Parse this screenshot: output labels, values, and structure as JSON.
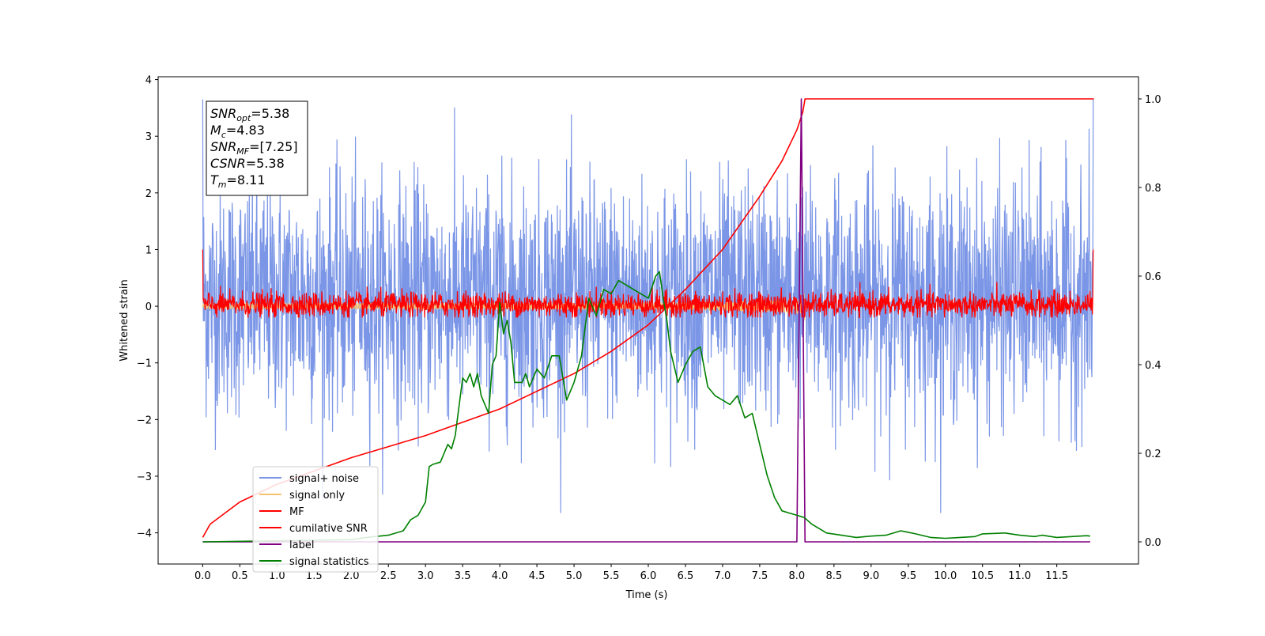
{
  "chart_data": {
    "type": "line",
    "xlabel": "Time (s)",
    "ylabel": "Whitened strain",
    "xlim": [
      -0.6,
      12.6
    ],
    "ylim": [
      -4.55,
      4.05
    ],
    "y2lim": [
      -0.05,
      1.05
    ],
    "x_ticks": [
      "0.0",
      "0.5",
      "1.0",
      "1.5",
      "2.0",
      "2.5",
      "3.0",
      "3.5",
      "4.0",
      "4.5",
      "5.0",
      "5.5",
      "6.0",
      "6.5",
      "7.0",
      "7.5",
      "8.0",
      "8.5",
      "9.0",
      "9.5",
      "10.0",
      "10.5",
      "11.0",
      "11.5"
    ],
    "y_ticks": [
      "4",
      "3",
      "2",
      "1",
      "0",
      "−1",
      "−2",
      "−3",
      "−4"
    ],
    "y2_ticks": [
      "1.0",
      "0.8",
      "0.6",
      "0.4",
      "0.2",
      "0.0"
    ],
    "annotation": {
      "snr_opt": {
        "sym": "SNR",
        "sub": "opt",
        "val": "=5.38"
      },
      "mc": {
        "sym": "M",
        "sub": "c",
        "val": "=4.83"
      },
      "snr_mf": {
        "sym": "SNR",
        "sub": "MF",
        "val": "=[7.25]"
      },
      "csnr": {
        "sym": "CSNR",
        "sub": "",
        "val": "=5.38"
      },
      "tm": {
        "sym": "T",
        "sub": "m",
        "val": "=8.11"
      }
    },
    "series": [
      {
        "name": "signal+ noise",
        "color": "#7b96e6",
        "axis": "left",
        "kind": "noise",
        "x_range": [
          0,
          11.99
        ],
        "typical_range": [
          -1.9,
          2.2
        ],
        "extremes": [
          -3.65,
          3.65
        ]
      },
      {
        "name": "signal only",
        "color": "#f5c270",
        "axis": "left",
        "kind": "chirp",
        "x_range": [
          0,
          8.11
        ],
        "amplitude_at_merger": 0.3
      },
      {
        "name": "MF",
        "color": "#ff0000",
        "axis": "left",
        "kind": "noise",
        "x_range": [
          0,
          11.99
        ],
        "typical_range": [
          -0.2,
          0.25
        ],
        "extremes": [
          -0.2,
          1.0
        ]
      },
      {
        "name": "cumilative SNR",
        "color": "#ff0000",
        "axis": "right",
        "x": [
          0,
          0.1,
          0.5,
          1.0,
          2.0,
          3.0,
          4.0,
          5.0,
          5.5,
          6.0,
          6.5,
          7.0,
          7.5,
          7.8,
          8.0,
          8.08,
          8.11,
          8.15,
          12.0
        ],
        "y": [
          0.01,
          0.04,
          0.09,
          0.13,
          0.19,
          0.24,
          0.3,
          0.38,
          0.43,
          0.49,
          0.57,
          0.66,
          0.78,
          0.86,
          0.93,
          0.97,
          1.0,
          1.0,
          1.0
        ]
      },
      {
        "name": "label",
        "color": "#800080",
        "axis": "right",
        "x": [
          0,
          7.99,
          8.0,
          8.06,
          8.11,
          8.12,
          11.95
        ],
        "y": [
          0,
          0,
          0,
          1.0,
          0,
          0,
          0
        ]
      },
      {
        "name": "signal statistics",
        "color": "#008000",
        "axis": "right",
        "x": [
          0,
          2.0,
          2.2,
          2.5,
          2.7,
          2.8,
          2.9,
          3.0,
          3.05,
          3.1,
          3.2,
          3.3,
          3.35,
          3.4,
          3.5,
          3.55,
          3.6,
          3.65,
          3.7,
          3.75,
          3.85,
          3.9,
          3.95,
          4.0,
          4.05,
          4.1,
          4.15,
          4.2,
          4.3,
          4.35,
          4.4,
          4.5,
          4.6,
          4.7,
          4.8,
          4.9,
          5.0,
          5.1,
          5.2,
          5.3,
          5.4,
          5.5,
          5.6,
          5.7,
          5.8,
          5.9,
          6.0,
          6.1,
          6.15,
          6.2,
          6.25,
          6.3,
          6.4,
          6.5,
          6.6,
          6.7,
          6.8,
          6.9,
          7.0,
          7.1,
          7.2,
          7.3,
          7.4,
          7.5,
          7.6,
          7.7,
          7.8,
          7.9,
          8.0,
          8.1,
          8.2,
          8.3,
          8.4,
          8.6,
          8.8,
          9.0,
          9.2,
          9.4,
          9.6,
          9.8,
          10.0,
          10.2,
          10.4,
          10.5,
          10.8,
          11.0,
          11.2,
          11.3,
          11.5,
          11.7,
          11.9,
          11.95
        ],
        "y": [
          0.0,
          0.005,
          0.01,
          0.015,
          0.025,
          0.05,
          0.06,
          0.09,
          0.17,
          0.175,
          0.18,
          0.22,
          0.21,
          0.24,
          0.37,
          0.36,
          0.38,
          0.35,
          0.38,
          0.33,
          0.29,
          0.4,
          0.42,
          0.54,
          0.47,
          0.5,
          0.45,
          0.36,
          0.36,
          0.38,
          0.35,
          0.39,
          0.37,
          0.42,
          0.42,
          0.32,
          0.36,
          0.42,
          0.55,
          0.51,
          0.57,
          0.56,
          0.59,
          0.58,
          0.57,
          0.56,
          0.55,
          0.6,
          0.61,
          0.55,
          0.5,
          0.43,
          0.36,
          0.4,
          0.43,
          0.44,
          0.35,
          0.33,
          0.32,
          0.31,
          0.33,
          0.28,
          0.29,
          0.22,
          0.15,
          0.1,
          0.07,
          0.065,
          0.06,
          0.055,
          0.04,
          0.03,
          0.02,
          0.015,
          0.01,
          0.013,
          0.015,
          0.025,
          0.018,
          0.01,
          0.008,
          0.01,
          0.012,
          0.018,
          0.02,
          0.015,
          0.012,
          0.015,
          0.01,
          0.012,
          0.014,
          0.013
        ]
      }
    ]
  }
}
